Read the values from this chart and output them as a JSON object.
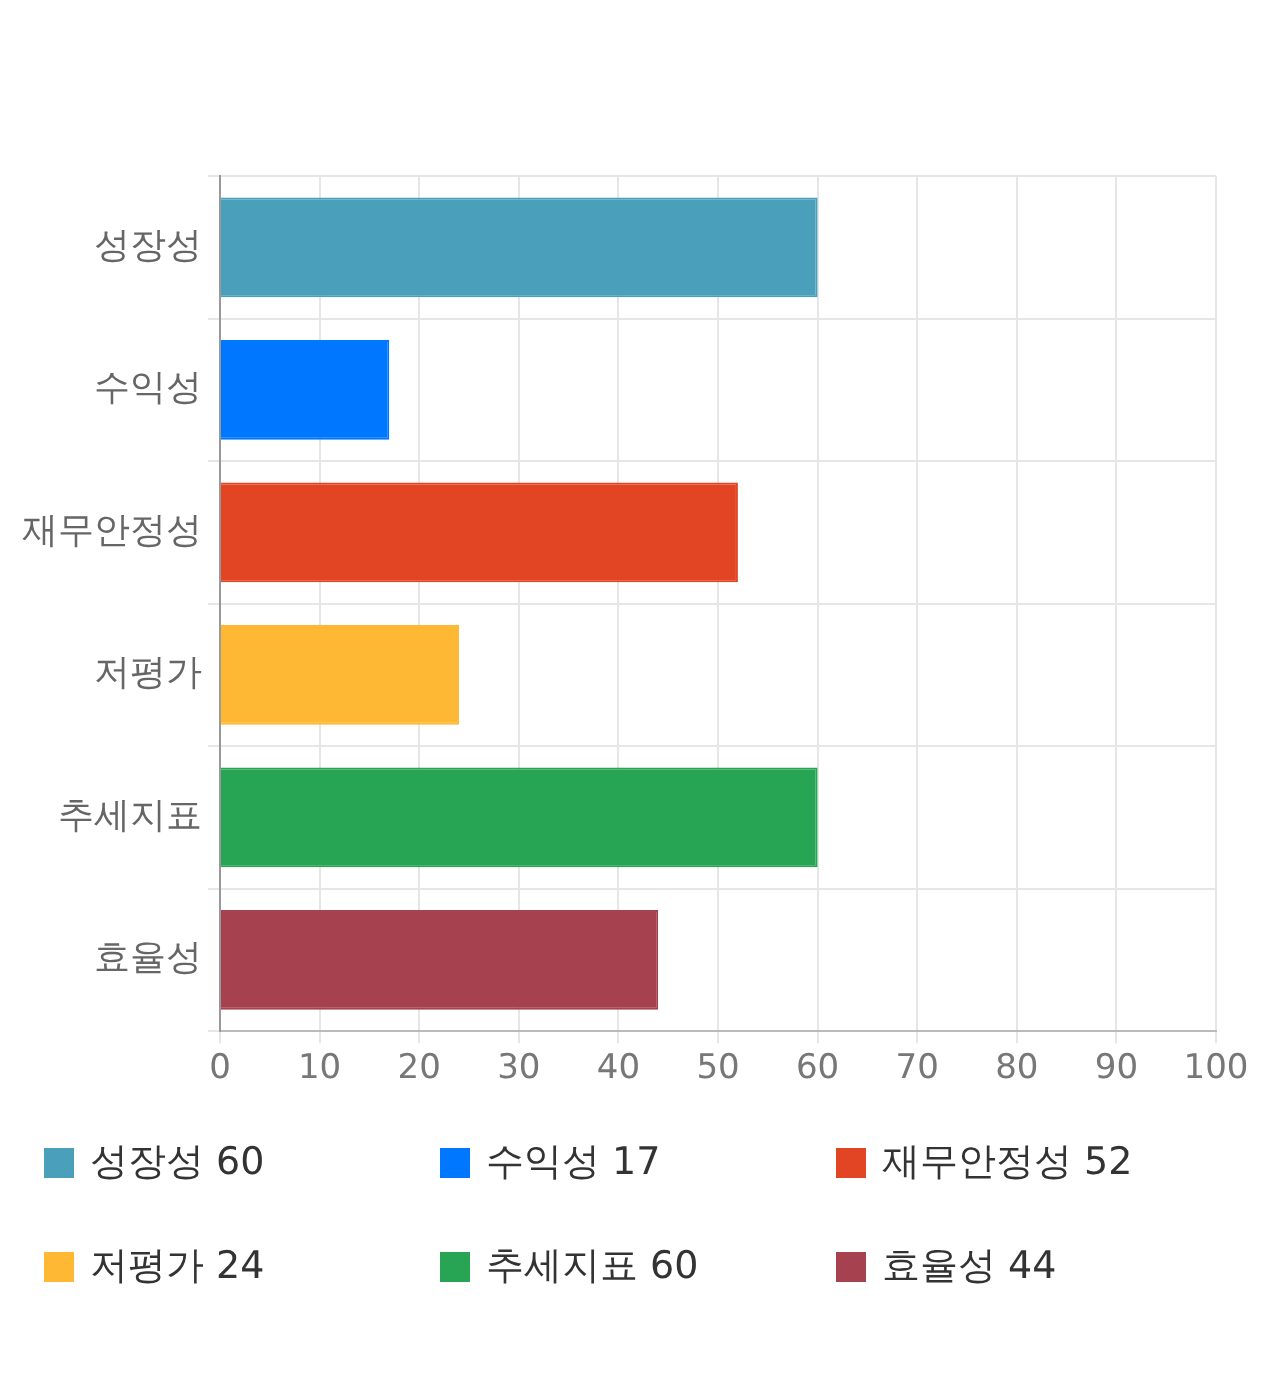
{
  "chart_data": {
    "type": "bar",
    "orientation": "horizontal",
    "stacked": true,
    "categories": [
      "성장성",
      "수익성",
      "재무안정성",
      "저평가",
      "추세지표",
      "효율성"
    ],
    "series": [
      {
        "name": "성장성 60",
        "color": "#4aa0ba",
        "values": [
          60,
          null,
          null,
          null,
          null,
          null
        ]
      },
      {
        "name": "수익성 17",
        "color": "#0077ff",
        "values": [
          null,
          17,
          null,
          null,
          null,
          null
        ]
      },
      {
        "name": "재무안정성 52",
        "color": "#e24523",
        "values": [
          null,
          null,
          52,
          null,
          null,
          null
        ]
      },
      {
        "name": "저평가 24",
        "color": "#ffb833",
        "values": [
          null,
          null,
          null,
          24,
          null,
          null
        ]
      },
      {
        "name": "추세지표 60",
        "color": "#27a555",
        "values": [
          null,
          null,
          null,
          null,
          60,
          null
        ]
      },
      {
        "name": "효율성 44",
        "color": "#a6414f",
        "values": [
          null,
          null,
          null,
          null,
          null,
          44
        ]
      }
    ],
    "xlim": [
      0,
      100
    ],
    "xticks": [
      0,
      10,
      20,
      30,
      40,
      50,
      60,
      70,
      80,
      90,
      100
    ],
    "grid": true,
    "legend": "bottom"
  }
}
